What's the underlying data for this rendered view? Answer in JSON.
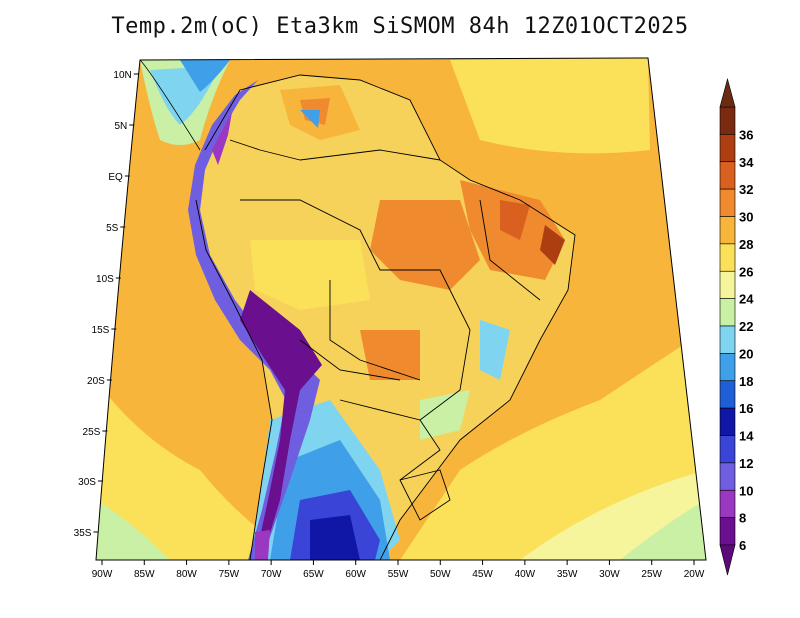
{
  "title": "Temp.2m(oC) Eta3km SiSMOM 84h 12Z01OCT2025",
  "lat_labels": [
    "10N",
    "5N",
    "EQ",
    "5S",
    "10S",
    "15S",
    "20S",
    "25S",
    "30S",
    "35S"
  ],
  "lon_labels": [
    "90W",
    "85W",
    "80W",
    "75W",
    "70W",
    "65W",
    "60W",
    "55W",
    "50W",
    "45W",
    "40W",
    "35W",
    "30W",
    "25W",
    "20W"
  ],
  "colorbar": {
    "labels": [
      "6",
      "8",
      "10",
      "12",
      "14",
      "16",
      "18",
      "20",
      "22",
      "24",
      "26",
      "28",
      "30",
      "32",
      "34",
      "36"
    ],
    "colors": [
      "#6a0f8e",
      "#9b38c2",
      "#6f5fe0",
      "#3a44d6",
      "#1016a6",
      "#1f5fd6",
      "#3f9fe8",
      "#7fd4f0",
      "#c9f0a4",
      "#f6f59c",
      "#fbe05a",
      "#f7b53c",
      "#ef8a2f",
      "#d9601f",
      "#ad3e12",
      "#7a2a10"
    ],
    "under_color": "#5c0a7a",
    "over_color": "#6b2b12"
  },
  "colors": {
    "ocean_warm": "#f7b53c",
    "ocean_mild": "#fbe05a",
    "land_base": "#f6d25a",
    "interior_hot": "#ef8a2f",
    "andes_cold": "#6f5fe0"
  }
}
